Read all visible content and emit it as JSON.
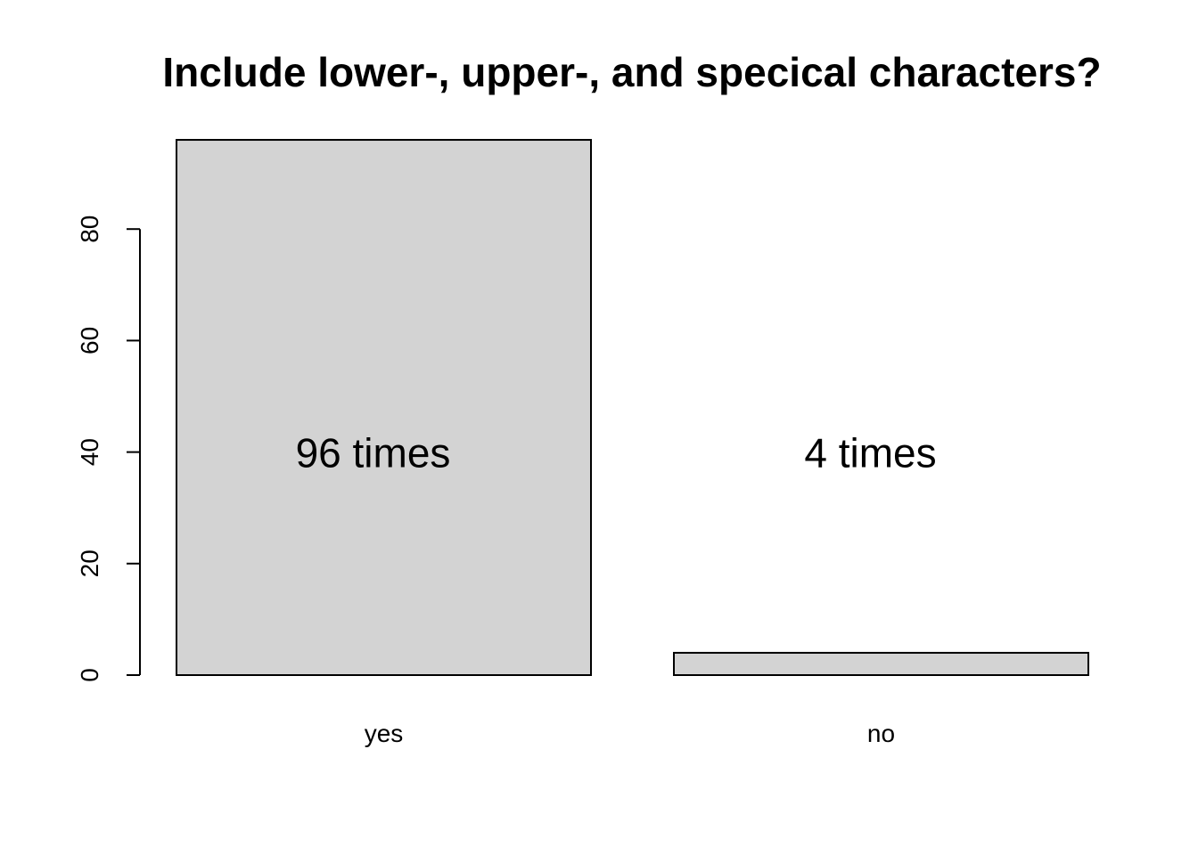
{
  "chart_data": {
    "type": "bar",
    "title": "Include lower-, upper-, and specical characters?",
    "categories": [
      "yes",
      "no"
    ],
    "values": [
      96,
      4
    ],
    "bar_labels": [
      "96 times",
      "4 times"
    ],
    "bar_label_y": 40,
    "xlabel": "",
    "ylabel": "",
    "y_ticks": [
      0,
      20,
      40,
      60,
      80
    ],
    "ylim": [
      0,
      96
    ],
    "grid": false,
    "bar_fill": "#d3d3d3",
    "bar_stroke": "#000000"
  }
}
